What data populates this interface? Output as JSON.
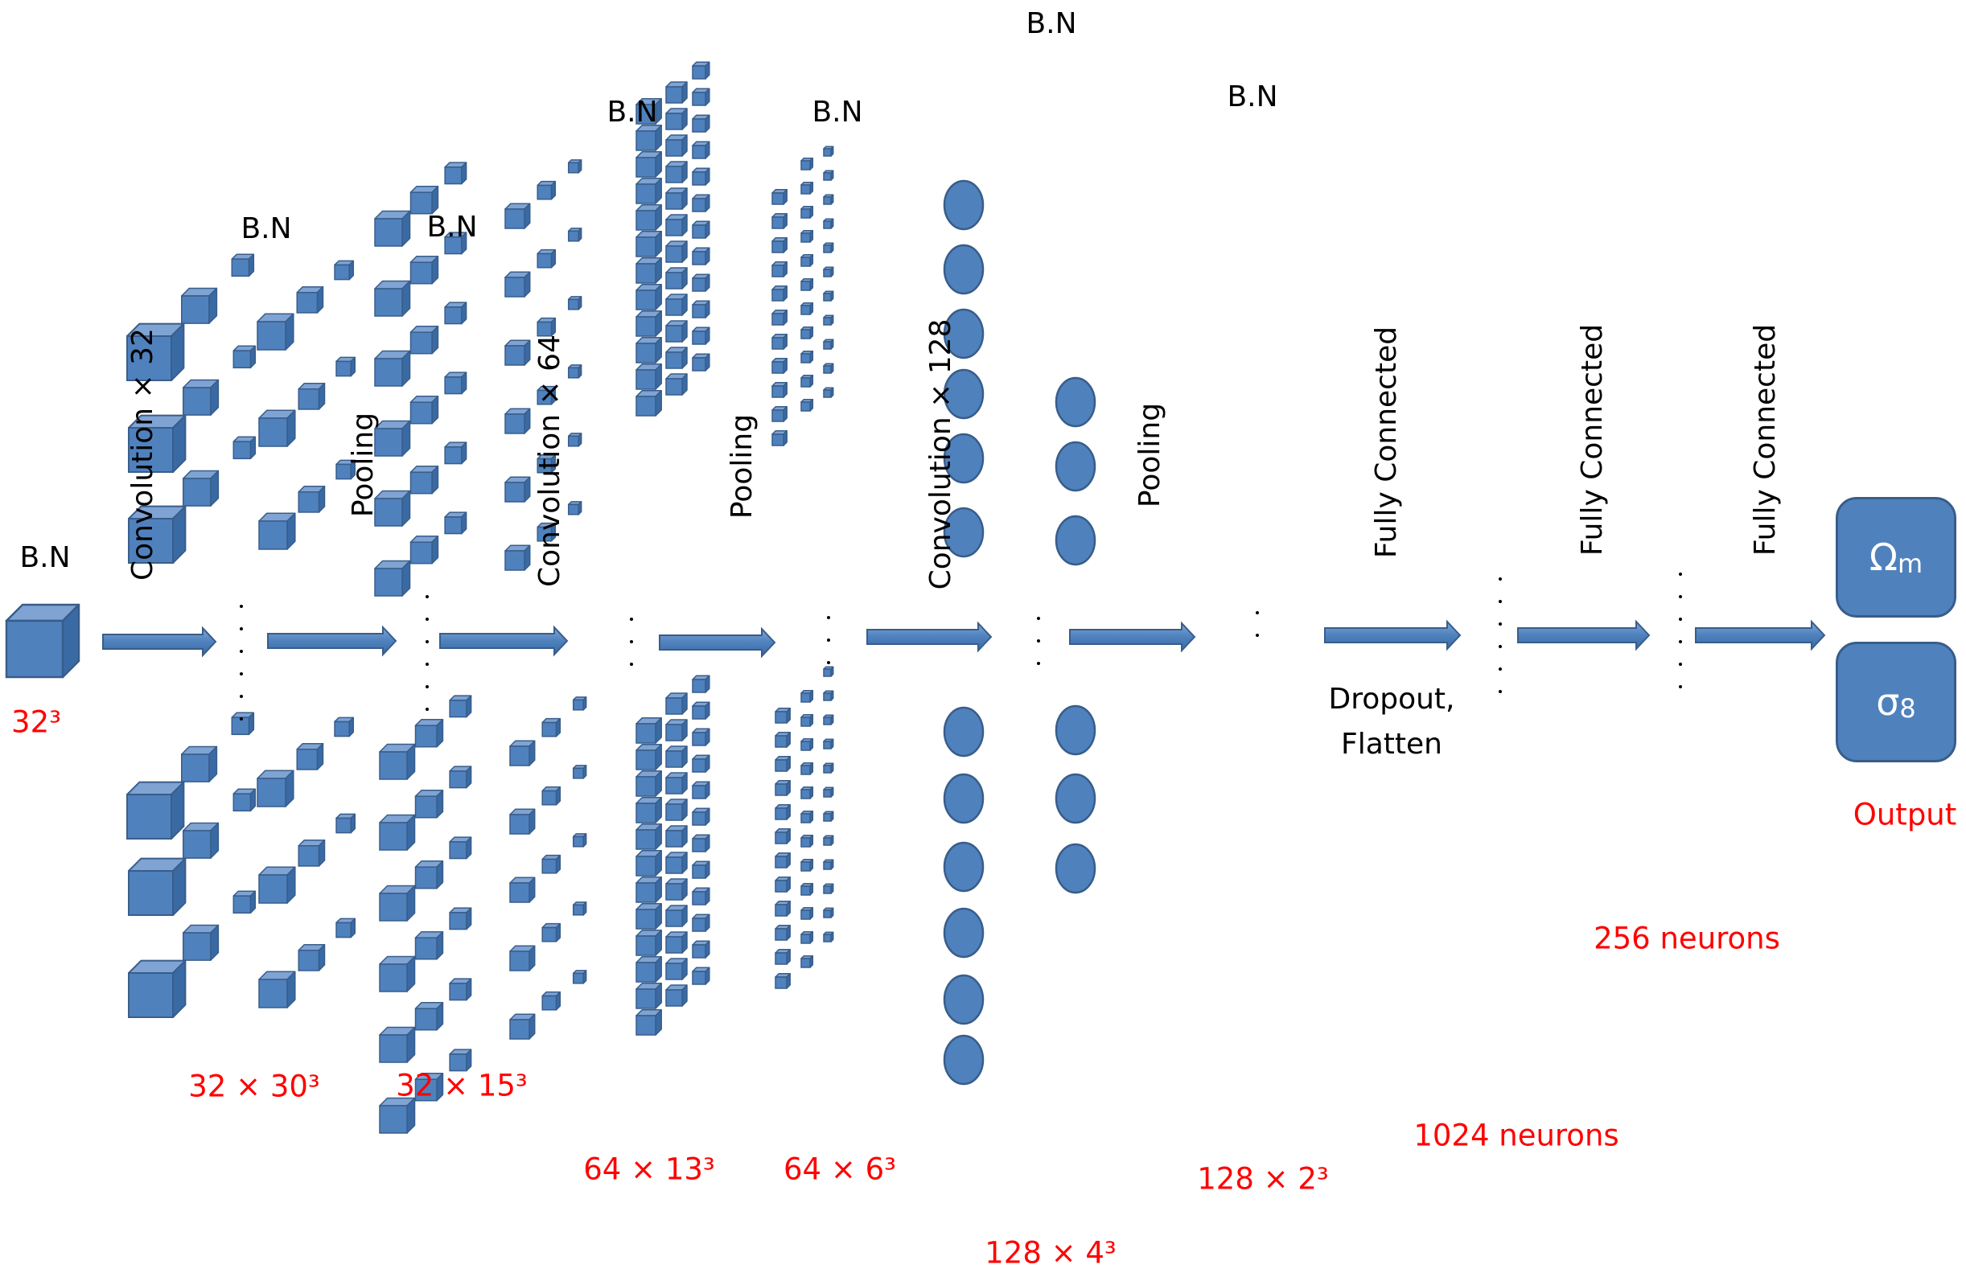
{
  "diagram": {
    "stages": [
      {
        "top_label": "B.N",
        "size_label": "32³"
      },
      {
        "op_label": "Convolution × 32"
      },
      {
        "top_label": "B.N",
        "size_label": "32 × 30³"
      },
      {
        "op_label": "Pooling"
      },
      {
        "top_label": "B.N",
        "size_label": "32 × 15³"
      },
      {
        "op_label": "Convolution × 64"
      },
      {
        "top_label": "B.N",
        "size_label": "64 × 13³"
      },
      {
        "op_label": "Pooling"
      },
      {
        "top_label": "B.N",
        "size_label": "64 × 6³"
      },
      {
        "op_label": "Convolution × 128"
      },
      {
        "top_label": "B.N",
        "size_label": "128 × 4³"
      },
      {
        "op_label": "Pooling"
      },
      {
        "top_label": "B.N",
        "size_label": "128 × 2³"
      },
      {
        "op_label": "Fully Connected",
        "note": "Dropout,\nFlatten"
      },
      {
        "size_label": "1024 neurons"
      },
      {
        "op_label": "Fully Connected"
      },
      {
        "size_label": "256 neurons"
      },
      {
        "op_label": "Fully Connected"
      }
    ],
    "output": {
      "omega": "Ω",
      "omega_sub": "m",
      "sigma": "σ",
      "sigma_sub": "8",
      "label": "Output"
    },
    "colors": {
      "fill": "#4f81bd",
      "top": "#7fa3d3",
      "side": "#3a6aa4",
      "edge": "#385d8a",
      "size_text": "#ff0000"
    }
  }
}
